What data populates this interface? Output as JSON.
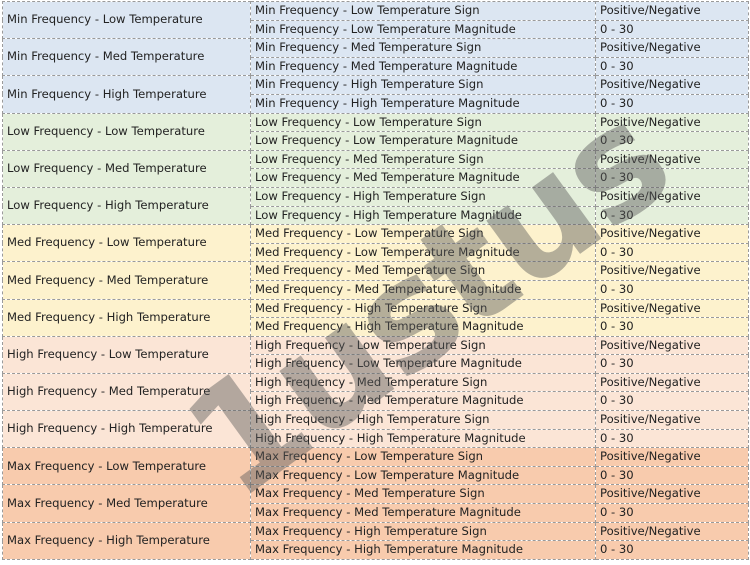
{
  "watermark": "1ustus",
  "groups": [
    {
      "label": "Min Frequency - Low Temperature",
      "color": "#dce6f2",
      "rows": [
        {
          "param": "Min Frequency - Low Temperature Sign",
          "value": "Positive/Negative"
        },
        {
          "param": "Min Frequency - Low Temperature Magnitude",
          "value": "0 - 30"
        }
      ]
    },
    {
      "label": "Min Frequency - Med Temperature",
      "color": "#dce6f2",
      "rows": [
        {
          "param": "Min Frequency - Med Temperature Sign",
          "value": "Positive/Negative"
        },
        {
          "param": "Min Frequency - Med Temperature Magnitude",
          "value": "0 - 30"
        }
      ]
    },
    {
      "label": "Min Frequency - High Temperature",
      "color": "#dce6f2",
      "rows": [
        {
          "param": "Min Frequency - High Temperature Sign",
          "value": "Positive/Negative"
        },
        {
          "param": "Min Frequency - High Temperature Magnitude",
          "value": "0 - 30"
        }
      ]
    },
    {
      "label": "Low Frequency - Low Temperature",
      "color": "#e4efdb",
      "rows": [
        {
          "param": "Low Frequency - Low Temperature Sign",
          "value": "Positive/Negative"
        },
        {
          "param": "Low Frequency - Low Temperature Magnitude",
          "value": "0 - 30"
        }
      ]
    },
    {
      "label": "Low Frequency - Med Temperature",
      "color": "#e4efdb",
      "rows": [
        {
          "param": "Low Frequency - Med Temperature Sign",
          "value": "Positive/Negative"
        },
        {
          "param": "Low Frequency - Med Temperature Magnitude",
          "value": "0 - 30"
        }
      ]
    },
    {
      "label": "Low Frequency - High Temperature",
      "color": "#e4efdb",
      "rows": [
        {
          "param": "Low Frequency - High Temperature Sign",
          "value": "Positive/Negative"
        },
        {
          "param": "Low Frequency - High Temperature Magnitude",
          "value": "0 - 30"
        }
      ]
    },
    {
      "label": "Med Frequency - Low Temperature",
      "color": "#fdf2cd",
      "rows": [
        {
          "param": "Med Frequency - Low Temperature Sign",
          "value": "Positive/Negative"
        },
        {
          "param": "Med Frequency - Low Temperature Magnitude",
          "value": "0 - 30"
        }
      ]
    },
    {
      "label": "Med Frequency - Med Temperature",
      "color": "#fdf2cd",
      "rows": [
        {
          "param": "Med Frequency - Med Temperature Sign",
          "value": "Positive/Negative"
        },
        {
          "param": "Med Frequency - Med Temperature Magnitude",
          "value": "0 - 30"
        }
      ]
    },
    {
      "label": "Med Frequency - High Temperature",
      "color": "#fdf2cd",
      "rows": [
        {
          "param": "Med Frequency - High Temperature Sign",
          "value": "Positive/Negative"
        },
        {
          "param": "Med Frequency - High Temperature Magnitude",
          "value": "0 - 30"
        }
      ]
    },
    {
      "label": "High Frequency - Low Temperature",
      "color": "#fbe5d6",
      "rows": [
        {
          "param": "High Frequency - Low Temperature Sign",
          "value": "Positive/Negative"
        },
        {
          "param": "High Frequency - Low Temperature Magnitude",
          "value": "0 - 30"
        }
      ]
    },
    {
      "label": "High Frequency - Med Temperature",
      "color": "#fbe5d6",
      "rows": [
        {
          "param": "High Frequency - Med Temperature Sign",
          "value": "Positive/Negative"
        },
        {
          "param": "High Frequency - Med Temperature Magnitude",
          "value": "0 - 30"
        }
      ]
    },
    {
      "label": "High Frequency - High Temperature",
      "color": "#fbe5d6",
      "rows": [
        {
          "param": "High Frequency - High Temperature Sign",
          "value": "Positive/Negative"
        },
        {
          "param": "High Frequency - High Temperature Magnitude",
          "value": "0 - 30"
        }
      ]
    },
    {
      "label": "Max Frequency - Low Temperature",
      "color": "#f8cbad",
      "rows": [
        {
          "param": "Max Frequency - Low Temperature Sign",
          "value": "Positive/Negative"
        },
        {
          "param": "Max Frequency - Low Temperature Magnitude",
          "value": "0 - 30"
        }
      ]
    },
    {
      "label": "Max Frequency - Med Temperature",
      "color": "#f8cbad",
      "rows": [
        {
          "param": "Max Frequency - Med Temperature Sign",
          "value": "Positive/Negative"
        },
        {
          "param": "Max Frequency - Med Temperature Magnitude",
          "value": "0 - 30"
        }
      ]
    },
    {
      "label": "Max Frequency - High Temperature",
      "color": "#f8cbad",
      "rows": [
        {
          "param": "Max Frequency - High Temperature Sign",
          "value": "Positive/Negative"
        },
        {
          "param": "Max Frequency - High Temperature Magnitude",
          "value": "0 - 30"
        }
      ]
    }
  ]
}
